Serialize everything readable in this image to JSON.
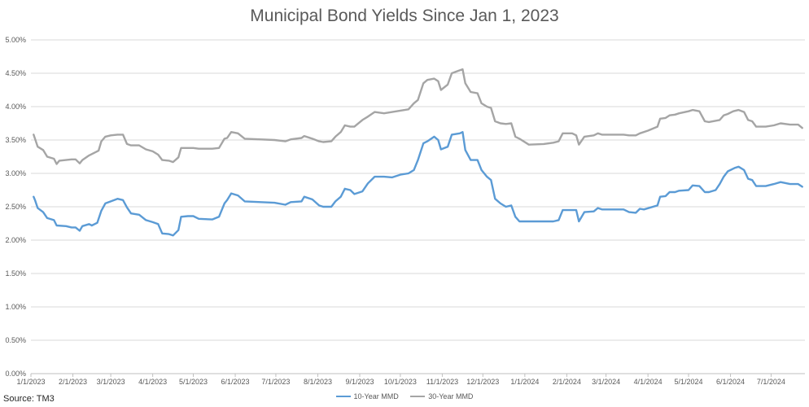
{
  "chart_data": {
    "type": "line",
    "title": "Municipal Bond Yields Since Jan 1, 2023",
    "xlabel": "",
    "ylabel": "",
    "source": "Source: TM3",
    "xlim": [
      "2023-01-01",
      "2024-07-26"
    ],
    "ylim": [
      0,
      5
    ],
    "y_ticks": [
      "0.00%",
      "0.50%",
      "1.00%",
      "1.50%",
      "2.00%",
      "2.50%",
      "3.00%",
      "3.50%",
      "4.00%",
      "4.50%",
      "5.00%"
    ],
    "x_ticks": [
      "1/1/2023",
      "2/1/2023",
      "3/1/2023",
      "4/1/2023",
      "5/1/2023",
      "6/1/2023",
      "7/1/2023",
      "8/1/2023",
      "9/1/2023",
      "10/1/2023",
      "11/1/2023",
      "12/1/2023",
      "1/1/2024",
      "2/1/2024",
      "3/1/2024",
      "4/1/2024",
      "5/1/2024",
      "6/1/2024",
      "7/1/2024"
    ],
    "grid": "horizontal",
    "legend_position": "bottom",
    "series": [
      {
        "name": "10-Year MMD",
        "color": "#5b9bd5",
        "points": [
          [
            "2023-01-03",
            2.65
          ],
          [
            "2023-01-04",
            2.6
          ],
          [
            "2023-01-06",
            2.48
          ],
          [
            "2023-01-10",
            2.42
          ],
          [
            "2023-01-13",
            2.33
          ],
          [
            "2023-01-18",
            2.3
          ],
          [
            "2023-01-20",
            2.22
          ],
          [
            "2023-01-27",
            2.21
          ],
          [
            "2023-01-31",
            2.19
          ],
          [
            "2023-02-03",
            2.19
          ],
          [
            "2023-02-06",
            2.14
          ],
          [
            "2023-02-08",
            2.21
          ],
          [
            "2023-02-13",
            2.24
          ],
          [
            "2023-02-15",
            2.22
          ],
          [
            "2023-02-19",
            2.26
          ],
          [
            "2023-02-22",
            2.44
          ],
          [
            "2023-02-25",
            2.55
          ],
          [
            "2023-03-01",
            2.58
          ],
          [
            "2023-03-06",
            2.62
          ],
          [
            "2023-03-10",
            2.6
          ],
          [
            "2023-03-13",
            2.49
          ],
          [
            "2023-03-16",
            2.4
          ],
          [
            "2023-03-22",
            2.38
          ],
          [
            "2023-03-27",
            2.3
          ],
          [
            "2023-04-01",
            2.27
          ],
          [
            "2023-04-05",
            2.24
          ],
          [
            "2023-04-08",
            2.1
          ],
          [
            "2023-04-13",
            2.09
          ],
          [
            "2023-04-16",
            2.07
          ],
          [
            "2023-04-20",
            2.15
          ],
          [
            "2023-04-22",
            2.35
          ],
          [
            "2023-04-27",
            2.36
          ],
          [
            "2023-05-01",
            2.36
          ],
          [
            "2023-05-05",
            2.32
          ],
          [
            "2023-05-15",
            2.31
          ],
          [
            "2023-05-20",
            2.35
          ],
          [
            "2023-05-24",
            2.55
          ],
          [
            "2023-05-26",
            2.6
          ],
          [
            "2023-05-29",
            2.7
          ],
          [
            "2023-06-03",
            2.67
          ],
          [
            "2023-06-08",
            2.58
          ],
          [
            "2023-06-30",
            2.56
          ],
          [
            "2023-07-08",
            2.53
          ],
          [
            "2023-07-12",
            2.57
          ],
          [
            "2023-07-20",
            2.58
          ],
          [
            "2023-07-22",
            2.65
          ],
          [
            "2023-07-28",
            2.61
          ],
          [
            "2023-08-02",
            2.52
          ],
          [
            "2023-08-05",
            2.5
          ],
          [
            "2023-08-11",
            2.5
          ],
          [
            "2023-08-14",
            2.58
          ],
          [
            "2023-08-18",
            2.65
          ],
          [
            "2023-08-21",
            2.77
          ],
          [
            "2023-08-25",
            2.75
          ],
          [
            "2023-08-28",
            2.69
          ],
          [
            "2023-09-03",
            2.73
          ],
          [
            "2023-09-07",
            2.85
          ],
          [
            "2023-09-12",
            2.95
          ],
          [
            "2023-09-19",
            2.95
          ],
          [
            "2023-09-25",
            2.94
          ],
          [
            "2023-10-01",
            2.98
          ],
          [
            "2023-10-07",
            3.0
          ],
          [
            "2023-10-11",
            3.05
          ],
          [
            "2023-10-14",
            3.2
          ],
          [
            "2023-10-18",
            3.45
          ],
          [
            "2023-10-21",
            3.48
          ],
          [
            "2023-10-26",
            3.55
          ],
          [
            "2023-10-29",
            3.5
          ],
          [
            "2023-10-31",
            3.36
          ],
          [
            "2023-11-05",
            3.4
          ],
          [
            "2023-11-08",
            3.58
          ],
          [
            "2023-11-14",
            3.6
          ],
          [
            "2023-11-16",
            3.62
          ],
          [
            "2023-11-18",
            3.35
          ],
          [
            "2023-11-22",
            3.2
          ],
          [
            "2023-11-27",
            3.2
          ],
          [
            "2023-11-30",
            3.05
          ],
          [
            "2023-12-04",
            2.95
          ],
          [
            "2023-12-07",
            2.9
          ],
          [
            "2023-12-10",
            2.62
          ],
          [
            "2023-12-14",
            2.55
          ],
          [
            "2023-12-18",
            2.5
          ],
          [
            "2023-12-22",
            2.52
          ],
          [
            "2023-12-25",
            2.35
          ],
          [
            "2023-12-28",
            2.28
          ],
          [
            "2024-01-04",
            2.28
          ],
          [
            "2024-01-22",
            2.28
          ],
          [
            "2024-01-26",
            2.3
          ],
          [
            "2024-01-29",
            2.45
          ],
          [
            "2024-02-03",
            2.45
          ],
          [
            "2024-02-08",
            2.45
          ],
          [
            "2024-02-10",
            2.28
          ],
          [
            "2024-02-14",
            2.42
          ],
          [
            "2024-02-21",
            2.43
          ],
          [
            "2024-02-24",
            2.48
          ],
          [
            "2024-02-27",
            2.46
          ],
          [
            "2024-03-05",
            2.46
          ],
          [
            "2024-03-14",
            2.46
          ],
          [
            "2024-03-18",
            2.42
          ],
          [
            "2024-03-23",
            2.41
          ],
          [
            "2024-03-26",
            2.47
          ],
          [
            "2024-03-29",
            2.46
          ],
          [
            "2024-04-03",
            2.49
          ],
          [
            "2024-04-08",
            2.52
          ],
          [
            "2024-04-10",
            2.65
          ],
          [
            "2024-04-14",
            2.66
          ],
          [
            "2024-04-17",
            2.72
          ],
          [
            "2024-04-21",
            2.72
          ],
          [
            "2024-04-24",
            2.74
          ],
          [
            "2024-05-01",
            2.75
          ],
          [
            "2024-05-04",
            2.82
          ],
          [
            "2024-05-09",
            2.81
          ],
          [
            "2024-05-13",
            2.72
          ],
          [
            "2024-05-16",
            2.72
          ],
          [
            "2024-05-21",
            2.75
          ],
          [
            "2024-05-24",
            2.84
          ],
          [
            "2024-05-27",
            2.95
          ],
          [
            "2024-05-30",
            3.03
          ],
          [
            "2024-06-04",
            3.08
          ],
          [
            "2024-06-07",
            3.1
          ],
          [
            "2024-06-11",
            3.05
          ],
          [
            "2024-06-14",
            2.92
          ],
          [
            "2024-06-17",
            2.9
          ],
          [
            "2024-06-20",
            2.81
          ],
          [
            "2024-06-27",
            2.81
          ],
          [
            "2024-07-03",
            2.84
          ],
          [
            "2024-07-08",
            2.87
          ],
          [
            "2024-07-15",
            2.84
          ],
          [
            "2024-07-21",
            2.84
          ],
          [
            "2024-07-24",
            2.8
          ]
        ]
      },
      {
        "name": "30-Year MMD",
        "color": "#a5a5a5",
        "points": [
          [
            "2023-01-03",
            3.58
          ],
          [
            "2023-01-04",
            3.52
          ],
          [
            "2023-01-06",
            3.4
          ],
          [
            "2023-01-10",
            3.35
          ],
          [
            "2023-01-13",
            3.25
          ],
          [
            "2023-01-18",
            3.22
          ],
          [
            "2023-01-20",
            3.14
          ],
          [
            "2023-01-22",
            3.19
          ],
          [
            "2023-01-31",
            3.21
          ],
          [
            "2023-02-03",
            3.21
          ],
          [
            "2023-02-06",
            3.15
          ],
          [
            "2023-02-08",
            3.2
          ],
          [
            "2023-02-13",
            3.27
          ],
          [
            "2023-02-16",
            3.3
          ],
          [
            "2023-02-20",
            3.34
          ],
          [
            "2023-02-22",
            3.48
          ],
          [
            "2023-02-25",
            3.55
          ],
          [
            "2023-03-01",
            3.57
          ],
          [
            "2023-03-06",
            3.58
          ],
          [
            "2023-03-10",
            3.58
          ],
          [
            "2023-03-13",
            3.44
          ],
          [
            "2023-03-16",
            3.42
          ],
          [
            "2023-03-22",
            3.42
          ],
          [
            "2023-03-27",
            3.36
          ],
          [
            "2023-04-01",
            3.33
          ],
          [
            "2023-04-05",
            3.28
          ],
          [
            "2023-04-08",
            3.2
          ],
          [
            "2023-04-13",
            3.19
          ],
          [
            "2023-04-16",
            3.17
          ],
          [
            "2023-04-20",
            3.24
          ],
          [
            "2023-04-22",
            3.38
          ],
          [
            "2023-04-27",
            3.38
          ],
          [
            "2023-05-01",
            3.38
          ],
          [
            "2023-05-05",
            3.37
          ],
          [
            "2023-05-15",
            3.37
          ],
          [
            "2023-05-20",
            3.38
          ],
          [
            "2023-05-24",
            3.52
          ],
          [
            "2023-05-26",
            3.53
          ],
          [
            "2023-05-29",
            3.62
          ],
          [
            "2023-06-03",
            3.6
          ],
          [
            "2023-06-08",
            3.52
          ],
          [
            "2023-06-30",
            3.5
          ],
          [
            "2023-07-08",
            3.48
          ],
          [
            "2023-07-12",
            3.51
          ],
          [
            "2023-07-20",
            3.53
          ],
          [
            "2023-07-22",
            3.56
          ],
          [
            "2023-07-28",
            3.52
          ],
          [
            "2023-08-02",
            3.48
          ],
          [
            "2023-08-05",
            3.47
          ],
          [
            "2023-08-11",
            3.48
          ],
          [
            "2023-08-14",
            3.55
          ],
          [
            "2023-08-18",
            3.62
          ],
          [
            "2023-08-21",
            3.72
          ],
          [
            "2023-08-25",
            3.7
          ],
          [
            "2023-08-28",
            3.7
          ],
          [
            "2023-09-03",
            3.8
          ],
          [
            "2023-09-07",
            3.85
          ],
          [
            "2023-09-12",
            3.92
          ],
          [
            "2023-09-19",
            3.9
          ],
          [
            "2023-09-25",
            3.92
          ],
          [
            "2023-10-01",
            3.94
          ],
          [
            "2023-10-07",
            3.96
          ],
          [
            "2023-10-11",
            4.05
          ],
          [
            "2023-10-14",
            4.1
          ],
          [
            "2023-10-18",
            4.35
          ],
          [
            "2023-10-21",
            4.4
          ],
          [
            "2023-10-26",
            4.42
          ],
          [
            "2023-10-29",
            4.38
          ],
          [
            "2023-10-31",
            4.25
          ],
          [
            "2023-11-05",
            4.33
          ],
          [
            "2023-11-08",
            4.5
          ],
          [
            "2023-11-12",
            4.53
          ],
          [
            "2023-11-16",
            4.56
          ],
          [
            "2023-11-18",
            4.35
          ],
          [
            "2023-11-22",
            4.22
          ],
          [
            "2023-11-27",
            4.2
          ],
          [
            "2023-11-30",
            4.05
          ],
          [
            "2023-12-04",
            4.0
          ],
          [
            "2023-12-07",
            3.98
          ],
          [
            "2023-12-10",
            3.78
          ],
          [
            "2023-12-14",
            3.75
          ],
          [
            "2023-12-18",
            3.74
          ],
          [
            "2023-12-22",
            3.75
          ],
          [
            "2023-12-25",
            3.55
          ],
          [
            "2023-12-28",
            3.52
          ],
          [
            "2024-01-04",
            3.43
          ],
          [
            "2024-01-15",
            3.44
          ],
          [
            "2024-01-22",
            3.46
          ],
          [
            "2024-01-26",
            3.48
          ],
          [
            "2024-01-29",
            3.6
          ],
          [
            "2024-02-05",
            3.6
          ],
          [
            "2024-02-08",
            3.57
          ],
          [
            "2024-02-10",
            3.43
          ],
          [
            "2024-02-14",
            3.55
          ],
          [
            "2024-02-21",
            3.57
          ],
          [
            "2024-02-24",
            3.6
          ],
          [
            "2024-02-27",
            3.58
          ],
          [
            "2024-03-14",
            3.58
          ],
          [
            "2024-03-18",
            3.57
          ],
          [
            "2024-03-23",
            3.57
          ],
          [
            "2024-03-26",
            3.6
          ],
          [
            "2024-04-01",
            3.64
          ],
          [
            "2024-04-08",
            3.7
          ],
          [
            "2024-04-10",
            3.82
          ],
          [
            "2024-04-14",
            3.83
          ],
          [
            "2024-04-17",
            3.87
          ],
          [
            "2024-04-21",
            3.88
          ],
          [
            "2024-04-24",
            3.9
          ],
          [
            "2024-05-01",
            3.93
          ],
          [
            "2024-05-04",
            3.95
          ],
          [
            "2024-05-09",
            3.93
          ],
          [
            "2024-05-13",
            3.78
          ],
          [
            "2024-05-16",
            3.77
          ],
          [
            "2024-05-24",
            3.8
          ],
          [
            "2024-05-27",
            3.87
          ],
          [
            "2024-05-30",
            3.89
          ],
          [
            "2024-06-03",
            3.93
          ],
          [
            "2024-06-07",
            3.95
          ],
          [
            "2024-06-11",
            3.92
          ],
          [
            "2024-06-14",
            3.8
          ],
          [
            "2024-06-17",
            3.78
          ],
          [
            "2024-06-20",
            3.7
          ],
          [
            "2024-06-27",
            3.7
          ],
          [
            "2024-07-03",
            3.72
          ],
          [
            "2024-07-08",
            3.75
          ],
          [
            "2024-07-15",
            3.73
          ],
          [
            "2024-07-21",
            3.73
          ],
          [
            "2024-07-24",
            3.68
          ]
        ]
      }
    ]
  }
}
